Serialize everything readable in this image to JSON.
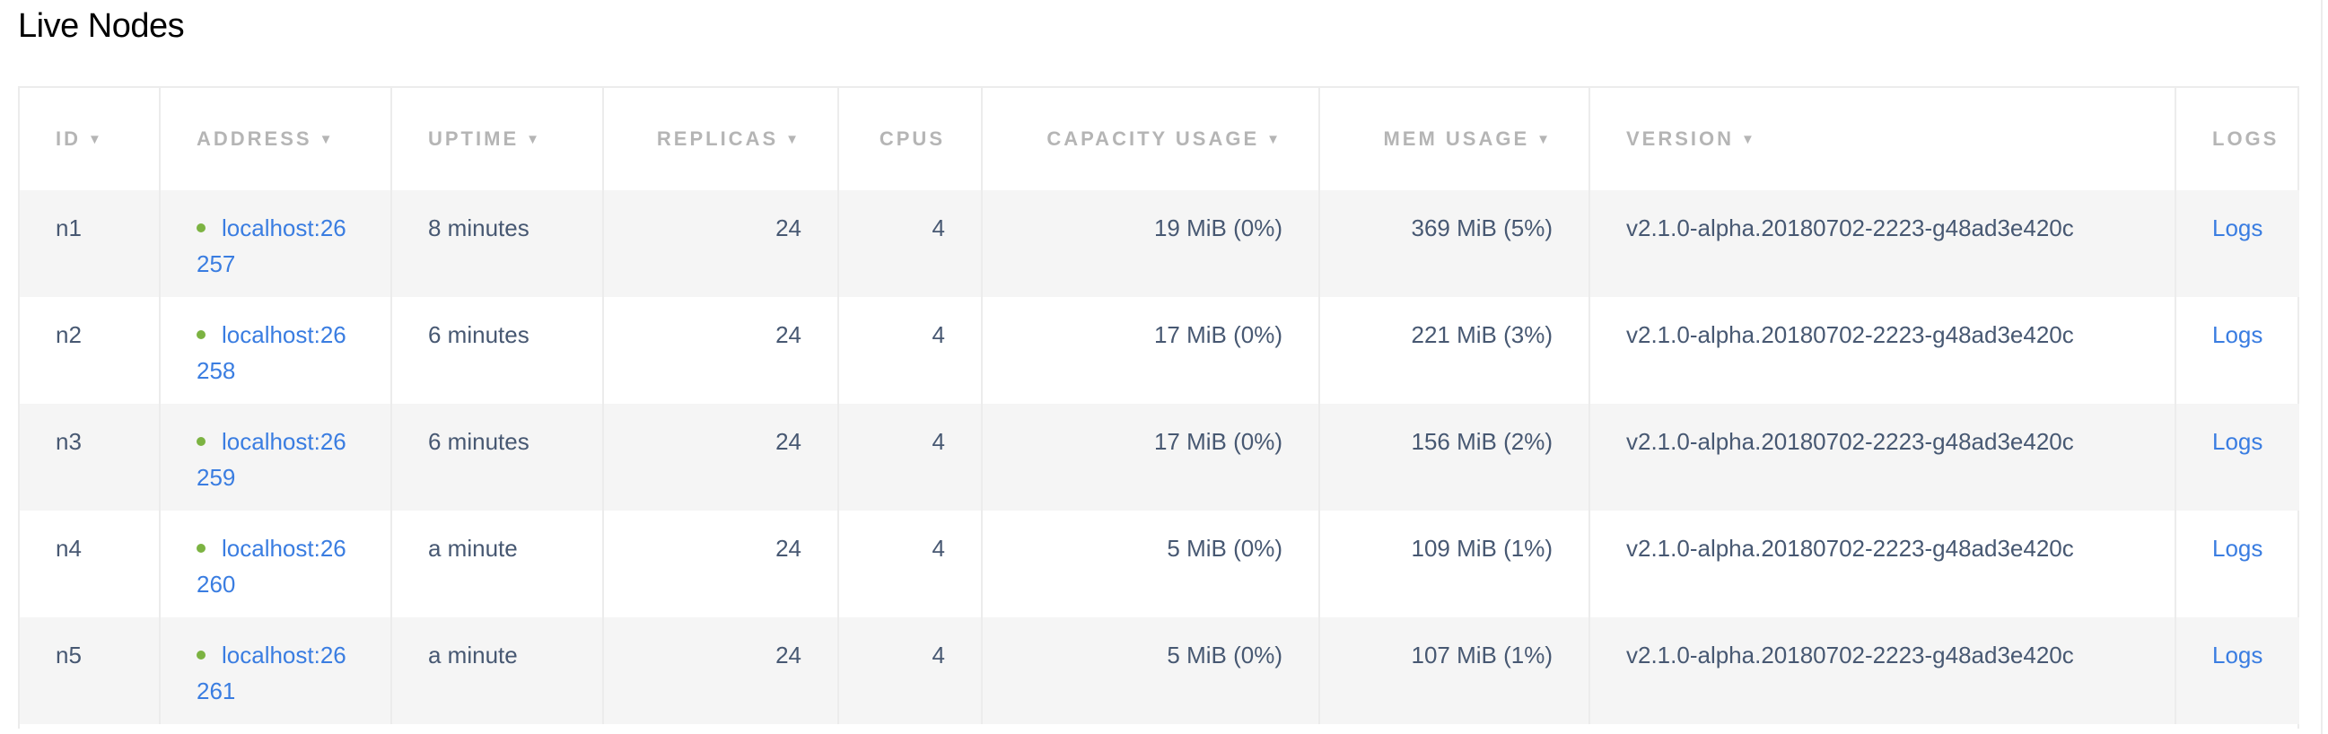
{
  "title": "Live Nodes",
  "columns": [
    "ID",
    "ADDRESS",
    "UPTIME",
    "REPLICAS",
    "CPUS",
    "CAPACITY USAGE",
    "MEM USAGE",
    "VERSION",
    "LOGS"
  ],
  "sort_arrow": "▼",
  "status_color": "#7cb342",
  "rows": [
    {
      "id": "n1",
      "address": "localhost:26257",
      "uptime": "8 minutes",
      "replicas": "24",
      "cpus": "4",
      "capacity": "19 MiB (0%)",
      "mem": "369 MiB (5%)",
      "version": "v2.1.0-alpha.20180702-2223-g48ad3e420c",
      "logs": "Logs"
    },
    {
      "id": "n2",
      "address": "localhost:26258",
      "uptime": "6 minutes",
      "replicas": "24",
      "cpus": "4",
      "capacity": "17 MiB (0%)",
      "mem": "221 MiB (3%)",
      "version": "v2.1.0-alpha.20180702-2223-g48ad3e420c",
      "logs": "Logs"
    },
    {
      "id": "n3",
      "address": "localhost:26259",
      "uptime": "6 minutes",
      "replicas": "24",
      "cpus": "4",
      "capacity": "17 MiB (0%)",
      "mem": "156 MiB (2%)",
      "version": "v2.1.0-alpha.20180702-2223-g48ad3e420c",
      "logs": "Logs"
    },
    {
      "id": "n4",
      "address": "localhost:26260",
      "uptime": "a minute",
      "replicas": "24",
      "cpus": "4",
      "capacity": "5 MiB (0%)",
      "mem": "109 MiB (1%)",
      "version": "v2.1.0-alpha.20180702-2223-g48ad3e420c",
      "logs": "Logs"
    },
    {
      "id": "n5",
      "address": "localhost:26261",
      "uptime": "a minute",
      "replicas": "24",
      "cpus": "4",
      "capacity": "5 MiB (0%)",
      "mem": "107 MiB (1%)",
      "version": "v2.1.0-alpha.20180702-2223-g48ad3e420c",
      "logs": "Logs"
    }
  ]
}
